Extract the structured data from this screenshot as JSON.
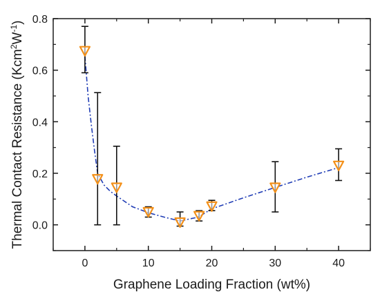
{
  "chart_data": {
    "type": "scatter",
    "xlabel": "Graphene Loading Fraction (wt%)",
    "ylabel": {
      "parts": [
        {
          "text": "Thermal Contact Resistance (Kcm",
          "sup": false
        },
        {
          "text": "2",
          "sup": true
        },
        {
          "text": "W",
          "sup": false
        },
        {
          "text": "-1",
          "sup": true
        },
        {
          "text": ")",
          "sup": false
        }
      ]
    },
    "xlim": [
      -5,
      45
    ],
    "ylim": [
      -0.1,
      0.8
    ],
    "x_ticks": [
      0,
      10,
      20,
      30,
      40
    ],
    "y_ticks": [
      0.0,
      0.2,
      0.4,
      0.6,
      0.8
    ],
    "x_tick_labels": [
      "0",
      "10",
      "20",
      "30",
      "40"
    ],
    "y_tick_labels": [
      "0.0",
      "0.2",
      "0.4",
      "0.6",
      "0.8"
    ],
    "grid": false,
    "series": [
      {
        "marker": "down-triangle",
        "marker_color": "#f39019",
        "points": [
          {
            "x": 0,
            "y": 0.675,
            "err_low": 0.59,
            "err_high": 0.77
          },
          {
            "x": 2,
            "y": 0.178,
            "err_low": 0.0,
            "err_high": 0.513
          },
          {
            "x": 5,
            "y": 0.145,
            "err_low": 0.0,
            "err_high": 0.305
          },
          {
            "x": 10,
            "y": 0.05,
            "err_low": 0.03,
            "err_high": 0.07
          },
          {
            "x": 15,
            "y": 0.01,
            "err_low": -0.005,
            "err_high": 0.05
          },
          {
            "x": 18,
            "y": 0.035,
            "err_low": 0.015,
            "err_high": 0.055
          },
          {
            "x": 20,
            "y": 0.072,
            "err_low": 0.055,
            "err_high": 0.095
          },
          {
            "x": 30,
            "y": 0.145,
            "err_low": 0.05,
            "err_high": 0.245
          },
          {
            "x": 40,
            "y": 0.23,
            "err_low": 0.172,
            "err_high": 0.295
          }
        ]
      }
    ],
    "fit_line": {
      "style": "dash-dot",
      "color": "#1f3cb5",
      "x": [
        0,
        0.5,
        1,
        1.5,
        2,
        3,
        4,
        5,
        7.5,
        10,
        12.5,
        15,
        17.5,
        18,
        20,
        25,
        30,
        35,
        40
      ],
      "y": [
        0.655,
        0.5,
        0.39,
        0.29,
        0.2,
        0.155,
        0.13,
        0.112,
        0.07,
        0.047,
        0.03,
        0.015,
        0.028,
        0.032,
        0.062,
        0.105,
        0.145,
        0.185,
        0.222
      ]
    }
  }
}
